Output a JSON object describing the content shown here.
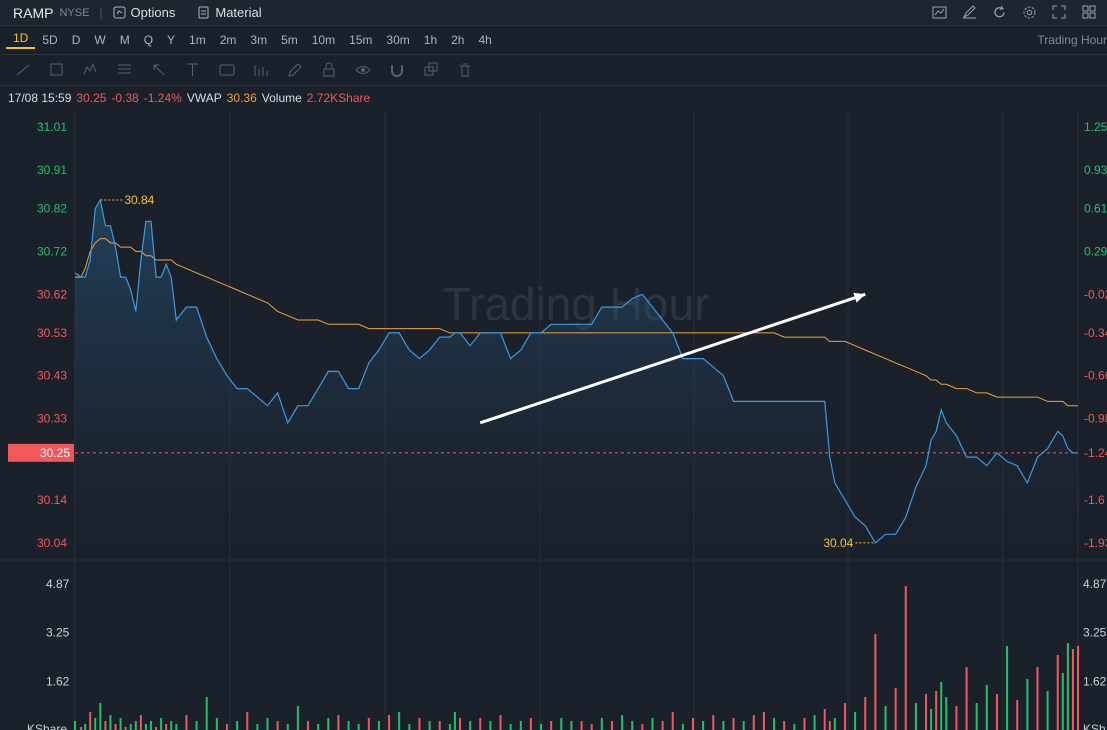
{
  "header": {
    "symbol": "RAMP",
    "exchange": "NYSE",
    "separator": "|",
    "options_label": "Options",
    "material_label": "Material",
    "right_icons": [
      "indicator-icon",
      "draw-edit-icon",
      "refresh-icon",
      "settings-icon",
      "fullscreen-icon",
      "grid-icon"
    ]
  },
  "periods": {
    "items": [
      "1D",
      "5D",
      "D",
      "W",
      "M",
      "Q",
      "Y",
      "1m",
      "2m",
      "3m",
      "5m",
      "10m",
      "15m",
      "30m",
      "1h",
      "2h",
      "4h"
    ],
    "active": "1D",
    "mode_label": "Trading Hour"
  },
  "toolbar": {
    "tools": [
      "trend-line-icon",
      "rectangle-icon",
      "pattern-icon",
      "fib-icon",
      "arrow-icon",
      "text-icon",
      "label-icon",
      "measure-icon",
      "pencil-icon",
      "lock-icon",
      "eye-icon",
      "magnet-icon",
      "copy-icon",
      "trash-icon"
    ]
  },
  "info": {
    "datetime": "17/08 15:59",
    "price": "30.25",
    "change": "-0.38",
    "change_pct": "-1.24%",
    "vwap_label": "VWAP",
    "vwap": "30.36",
    "volume_label": "Volume",
    "volume": "2.72KShare"
  },
  "chart_data": {
    "type": "line",
    "watermark": "Trading Hour",
    "colors": {
      "price": "#3b9ae1",
      "vwap": "#f0a33a",
      "up": "#21c16b",
      "down": "#f0585c",
      "last_price": "#f0585c",
      "extreme": "#f5c518"
    },
    "price_axis_left": [
      "31.01",
      "30.91",
      "30.82",
      "30.72",
      "30.62",
      "30.53",
      "30.43",
      "30.33",
      "30.25",
      "30.14",
      "30.04"
    ],
    "percent_axis_right": [
      "1.25",
      "0.93",
      "0.61",
      "0.29",
      "-0.02",
      "-0.34",
      "-0.66",
      "-0.98",
      "-1.24",
      "-1.6",
      "-1.93"
    ],
    "volume_axis_left": [
      "4.87",
      "3.25",
      "1.62"
    ],
    "volume_axis_right": [
      "4.87",
      "3.25",
      "1.62"
    ],
    "volume_unit": "KShare",
    "volume_unit_right": "KSh",
    "last_price_tag": "30.25",
    "last_pct_tag": "-1.24",
    "high_label": "30.84",
    "low_label": "30.04",
    "ylim": [
      30.0,
      31.05
    ],
    "yclose_prev": 30.63,
    "x": [
      0,
      6,
      10,
      15,
      20,
      25,
      30,
      35,
      40,
      45,
      50,
      55,
      60,
      65,
      70,
      75,
      80,
      85,
      90,
      95,
      100,
      110,
      120,
      130,
      140,
      150,
      160,
      170,
      180,
      190,
      200,
      210,
      220,
      230,
      240,
      250,
      260,
      270,
      280,
      290,
      300,
      310,
      320,
      330,
      340,
      350,
      360,
      370,
      375,
      380,
      390,
      400,
      410,
      420,
      430,
      440,
      450,
      460,
      470,
      480,
      490,
      500,
      510,
      520,
      530,
      540,
      550,
      560,
      570,
      580,
      590,
      600,
      610,
      620,
      630,
      640,
      650,
      660,
      670,
      680,
      690,
      700,
      710,
      720,
      730,
      740,
      745,
      750,
      760,
      770,
      780,
      790,
      800,
      810,
      820,
      830,
      840,
      845,
      850,
      855,
      860,
      870,
      880,
      890,
      900,
      910,
      920,
      930,
      940,
      950,
      960,
      970,
      975,
      980,
      985,
      990
    ],
    "price": [
      30.67,
      30.66,
      30.66,
      30.7,
      30.82,
      30.84,
      30.78,
      30.78,
      30.73,
      30.66,
      30.66,
      30.63,
      30.58,
      30.7,
      30.79,
      30.79,
      30.66,
      30.66,
      30.69,
      30.66,
      30.56,
      30.59,
      30.59,
      30.52,
      30.47,
      30.43,
      30.4,
      30.4,
      30.38,
      30.36,
      30.39,
      30.32,
      30.36,
      30.36,
      30.4,
      30.44,
      30.44,
      30.4,
      30.4,
      30.46,
      30.49,
      30.53,
      30.53,
      30.49,
      30.47,
      30.49,
      30.52,
      30.52,
      30.53,
      30.53,
      30.5,
      30.53,
      30.53,
      30.53,
      30.47,
      30.49,
      30.53,
      30.53,
      30.55,
      30.55,
      30.55,
      30.55,
      30.55,
      30.59,
      30.59,
      30.59,
      30.61,
      30.62,
      30.59,
      30.56,
      30.53,
      30.47,
      30.47,
      30.47,
      30.45,
      30.43,
      30.37,
      30.37,
      30.37,
      30.37,
      30.37,
      30.37,
      30.37,
      30.37,
      30.37,
      30.37,
      30.24,
      30.18,
      30.14,
      30.1,
      30.08,
      30.04,
      30.06,
      30.06,
      30.1,
      30.17,
      30.22,
      30.28,
      30.3,
      30.35,
      30.32,
      30.29,
      30.24,
      30.24,
      30.22,
      30.25,
      30.23,
      30.22,
      30.18,
      30.24,
      30.26,
      30.3,
      30.29,
      30.26,
      30.25,
      30.25
    ],
    "vwap": [
      30.66,
      30.66,
      30.68,
      30.72,
      30.74,
      30.75,
      30.75,
      30.74,
      30.74,
      30.73,
      30.73,
      30.73,
      30.72,
      30.72,
      30.71,
      30.71,
      30.7,
      30.7,
      30.7,
      30.7,
      30.69,
      30.68,
      30.67,
      30.66,
      30.65,
      30.64,
      30.63,
      30.62,
      30.61,
      30.6,
      30.58,
      30.57,
      30.56,
      30.56,
      30.56,
      30.55,
      30.55,
      30.55,
      30.55,
      30.54,
      30.54,
      30.54,
      30.54,
      30.54,
      30.54,
      30.54,
      30.54,
      30.53,
      30.53,
      30.53,
      30.53,
      30.53,
      30.53,
      30.53,
      30.53,
      30.53,
      30.53,
      30.53,
      30.53,
      30.53,
      30.53,
      30.53,
      30.53,
      30.53,
      30.53,
      30.53,
      30.53,
      30.53,
      30.53,
      30.53,
      30.53,
      30.53,
      30.53,
      30.53,
      30.53,
      30.53,
      30.53,
      30.53,
      30.53,
      30.53,
      30.53,
      30.52,
      30.52,
      30.52,
      30.52,
      30.52,
      30.51,
      30.51,
      30.51,
      30.5,
      30.49,
      30.48,
      30.47,
      30.46,
      30.45,
      30.44,
      30.43,
      30.42,
      30.42,
      30.41,
      30.41,
      30.4,
      30.4,
      30.39,
      30.39,
      30.38,
      30.38,
      30.38,
      30.38,
      30.38,
      30.37,
      30.37,
      30.37,
      30.36,
      30.36,
      30.36
    ],
    "volume": [
      0.3,
      0.1,
      0.2,
      0.6,
      0.4,
      0.9,
      0.3,
      0.5,
      0.2,
      0.4,
      0.1,
      0.2,
      0.3,
      0.5,
      0.2,
      0.3,
      0.1,
      0.4,
      0.2,
      0.3,
      0.2,
      0.5,
      0.3,
      1.1,
      0.4,
      0.2,
      0.3,
      0.6,
      0.2,
      0.4,
      0.3,
      0.2,
      0.8,
      0.3,
      0.2,
      0.4,
      0.5,
      0.3,
      0.2,
      0.4,
      0.3,
      0.5,
      0.6,
      0.2,
      0.4,
      0.3,
      0.3,
      0.2,
      0.6,
      0.4,
      0.3,
      0.4,
      0.3,
      0.5,
      0.2,
      0.3,
      0.4,
      0.2,
      0.3,
      0.4,
      0.3,
      0.3,
      0.2,
      0.4,
      0.3,
      0.5,
      0.3,
      0.2,
      0.4,
      0.3,
      0.6,
      0.2,
      0.4,
      0.3,
      0.5,
      0.3,
      0.4,
      0.3,
      0.5,
      0.6,
      0.4,
      0.3,
      0.2,
      0.4,
      0.5,
      0.7,
      0.3,
      0.4,
      0.9,
      0.6,
      1.1,
      3.2,
      0.8,
      1.4,
      4.8,
      0.9,
      1.2,
      0.7,
      1.3,
      1.6,
      1.1,
      0.8,
      2.1,
      0.9,
      1.5,
      1.2,
      2.8,
      1.0,
      1.7,
      2.1,
      1.3,
      2.5,
      1.9,
      2.9,
      2.7,
      2.8
    ],
    "volume_up": [
      true,
      false,
      true,
      false,
      true,
      true,
      false,
      true,
      false,
      true,
      false,
      true,
      true,
      false,
      true,
      true,
      false,
      true,
      false,
      true,
      true,
      false,
      true,
      true,
      true,
      false,
      true,
      false,
      true,
      true,
      false,
      true,
      true,
      false,
      true,
      true,
      false,
      true,
      true,
      false,
      true,
      false,
      true,
      true,
      false,
      true,
      false,
      true,
      true,
      false,
      true,
      false,
      true,
      false,
      true,
      true,
      false,
      true,
      false,
      true,
      true,
      false,
      false,
      true,
      false,
      true,
      true,
      false,
      true,
      false,
      false,
      true,
      false,
      true,
      false,
      true,
      false,
      true,
      false,
      false,
      true,
      false,
      true,
      false,
      true,
      false,
      false,
      true,
      false,
      true,
      false,
      false,
      true,
      false,
      false,
      true,
      false,
      true,
      false,
      true,
      true,
      false,
      false,
      true,
      true,
      false,
      true,
      false,
      true,
      false,
      true,
      false,
      true,
      true,
      false,
      false
    ],
    "arrow_annotation": {
      "from": [
        400,
        30.32
      ],
      "to": [
        780,
        30.62
      ]
    }
  }
}
